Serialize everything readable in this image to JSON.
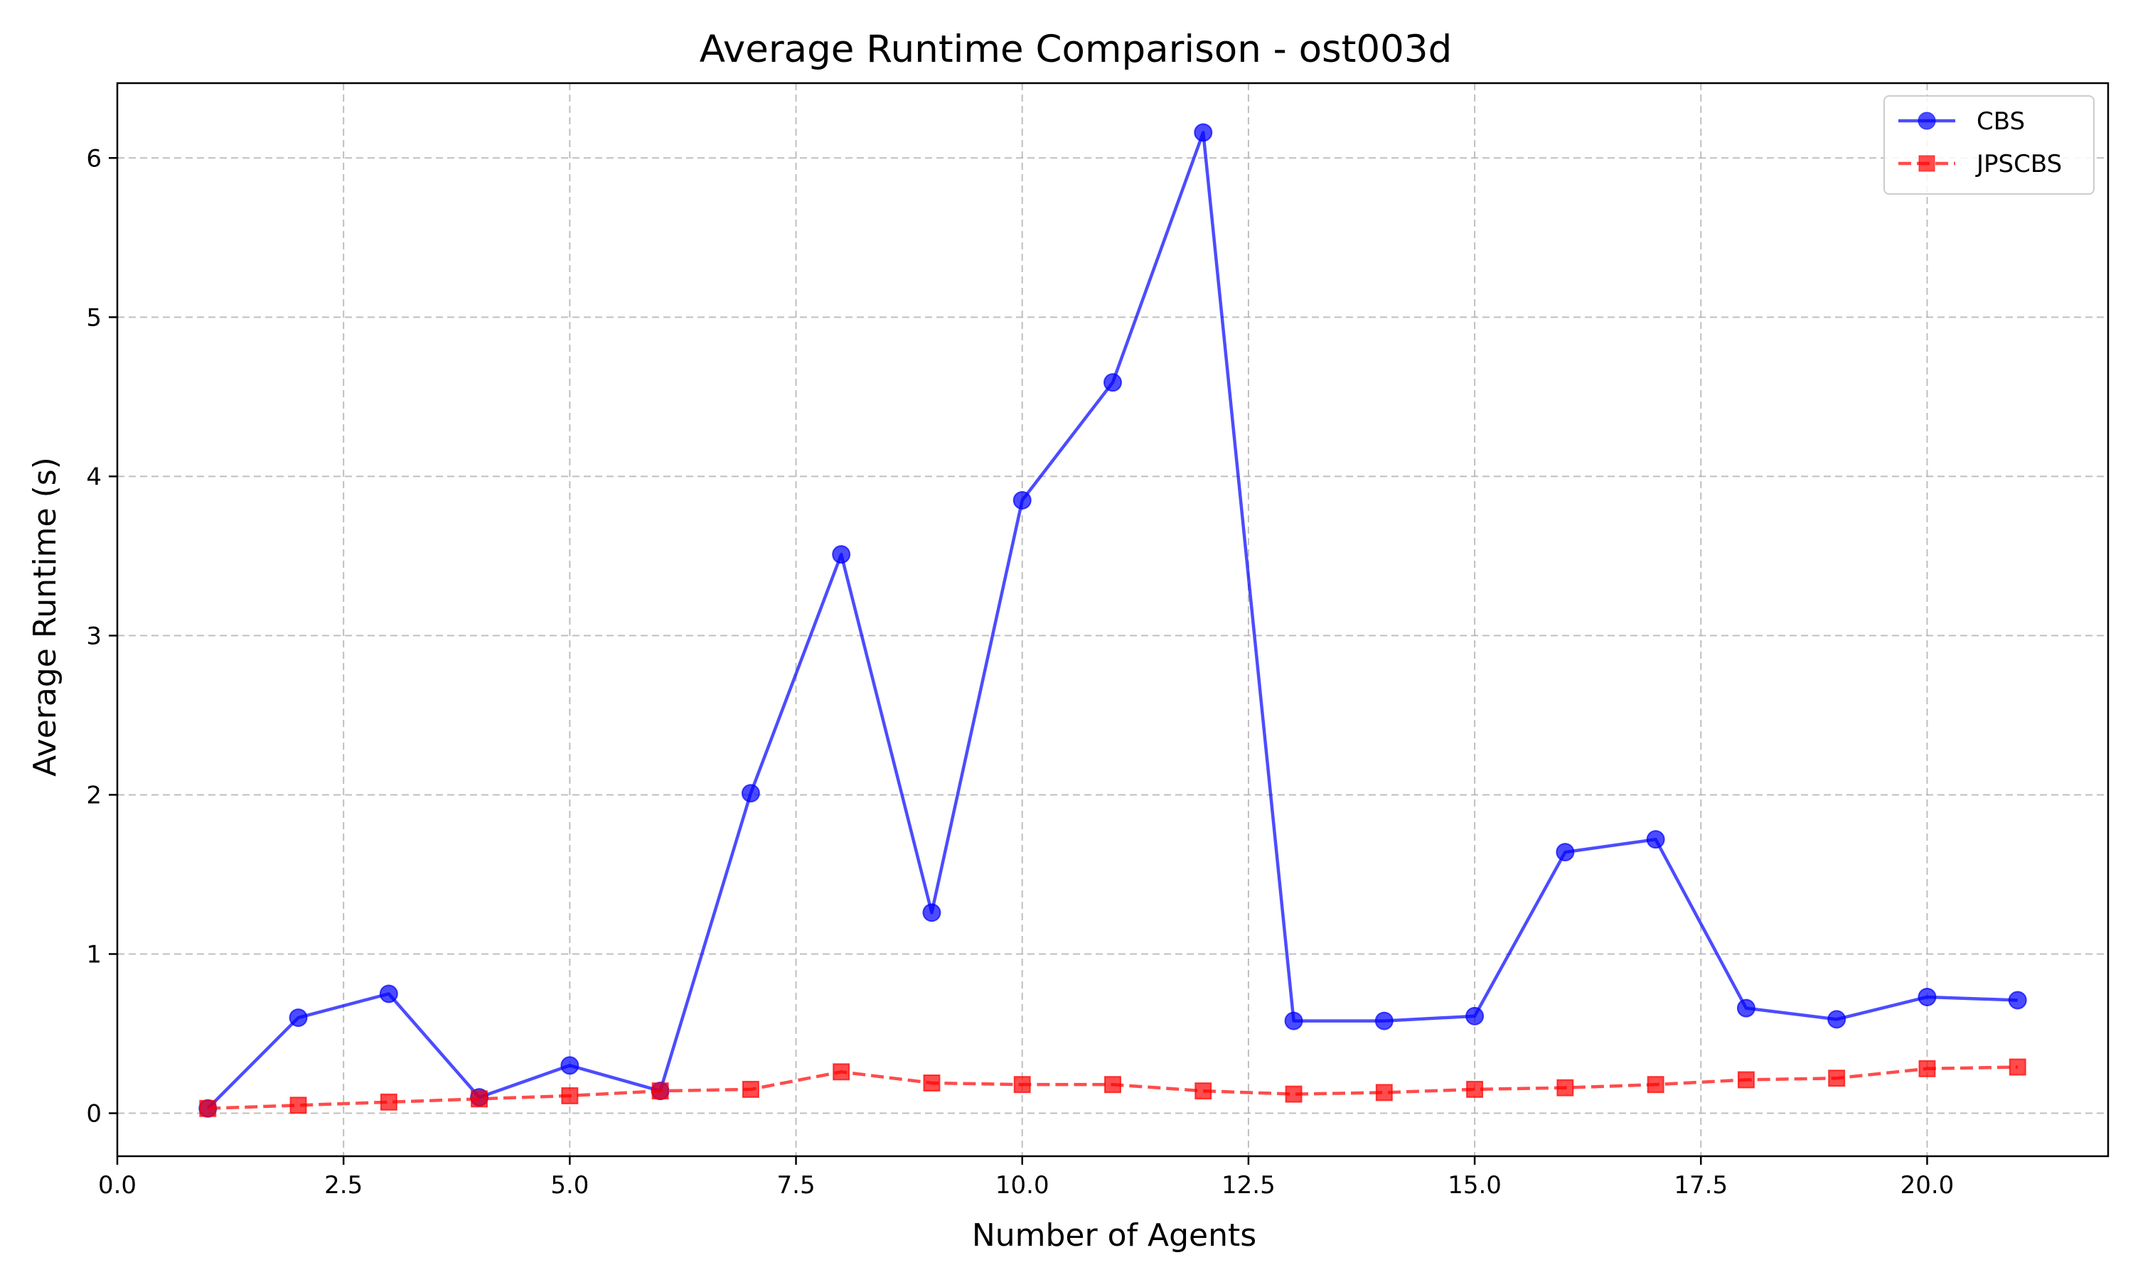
{
  "chart_data": {
    "type": "line",
    "title": "Average Runtime Comparison - ost003d",
    "xlabel": "Number of Agents",
    "ylabel": "Average Runtime (s)",
    "xlim": [
      0,
      22
    ],
    "ylim": [
      -0.27,
      6.47
    ],
    "x_ticks": [
      0,
      2.5,
      5,
      7.5,
      10,
      12.5,
      15,
      17.5,
      20
    ],
    "x_tick_labels": [
      "0.0",
      "2.5",
      "5.0",
      "7.5",
      "10.0",
      "12.5",
      "15.0",
      "17.5",
      "20.0"
    ],
    "y_ticks": [
      0,
      1,
      2,
      3,
      4,
      5,
      6
    ],
    "y_tick_labels": [
      "0",
      "1",
      "2",
      "3",
      "4",
      "5",
      "6"
    ],
    "grid": true,
    "legend_position": "top-right",
    "x": [
      1,
      2,
      3,
      4,
      5,
      6,
      7,
      8,
      9,
      10,
      11,
      12,
      13,
      14,
      15,
      16,
      17,
      18,
      19,
      20,
      21
    ],
    "series": [
      {
        "name": "CBS",
        "color": "#0000ff",
        "line_style": "solid",
        "marker": "circle",
        "values": [
          0.03,
          0.6,
          0.75,
          0.1,
          0.3,
          0.14,
          2.01,
          3.51,
          1.26,
          3.85,
          4.59,
          6.16,
          0.58,
          0.58,
          0.61,
          1.64,
          1.72,
          0.66,
          0.59,
          0.73,
          0.71
        ]
      },
      {
        "name": "JPSCBS",
        "color": "#ff0000",
        "line_style": "dashed",
        "marker": "square",
        "values": [
          0.03,
          0.05,
          0.07,
          0.09,
          0.11,
          0.14,
          0.15,
          0.26,
          0.19,
          0.18,
          0.18,
          0.14,
          0.12,
          0.13,
          0.15,
          0.16,
          0.18,
          0.21,
          0.22,
          0.28,
          0.29
        ]
      }
    ]
  }
}
